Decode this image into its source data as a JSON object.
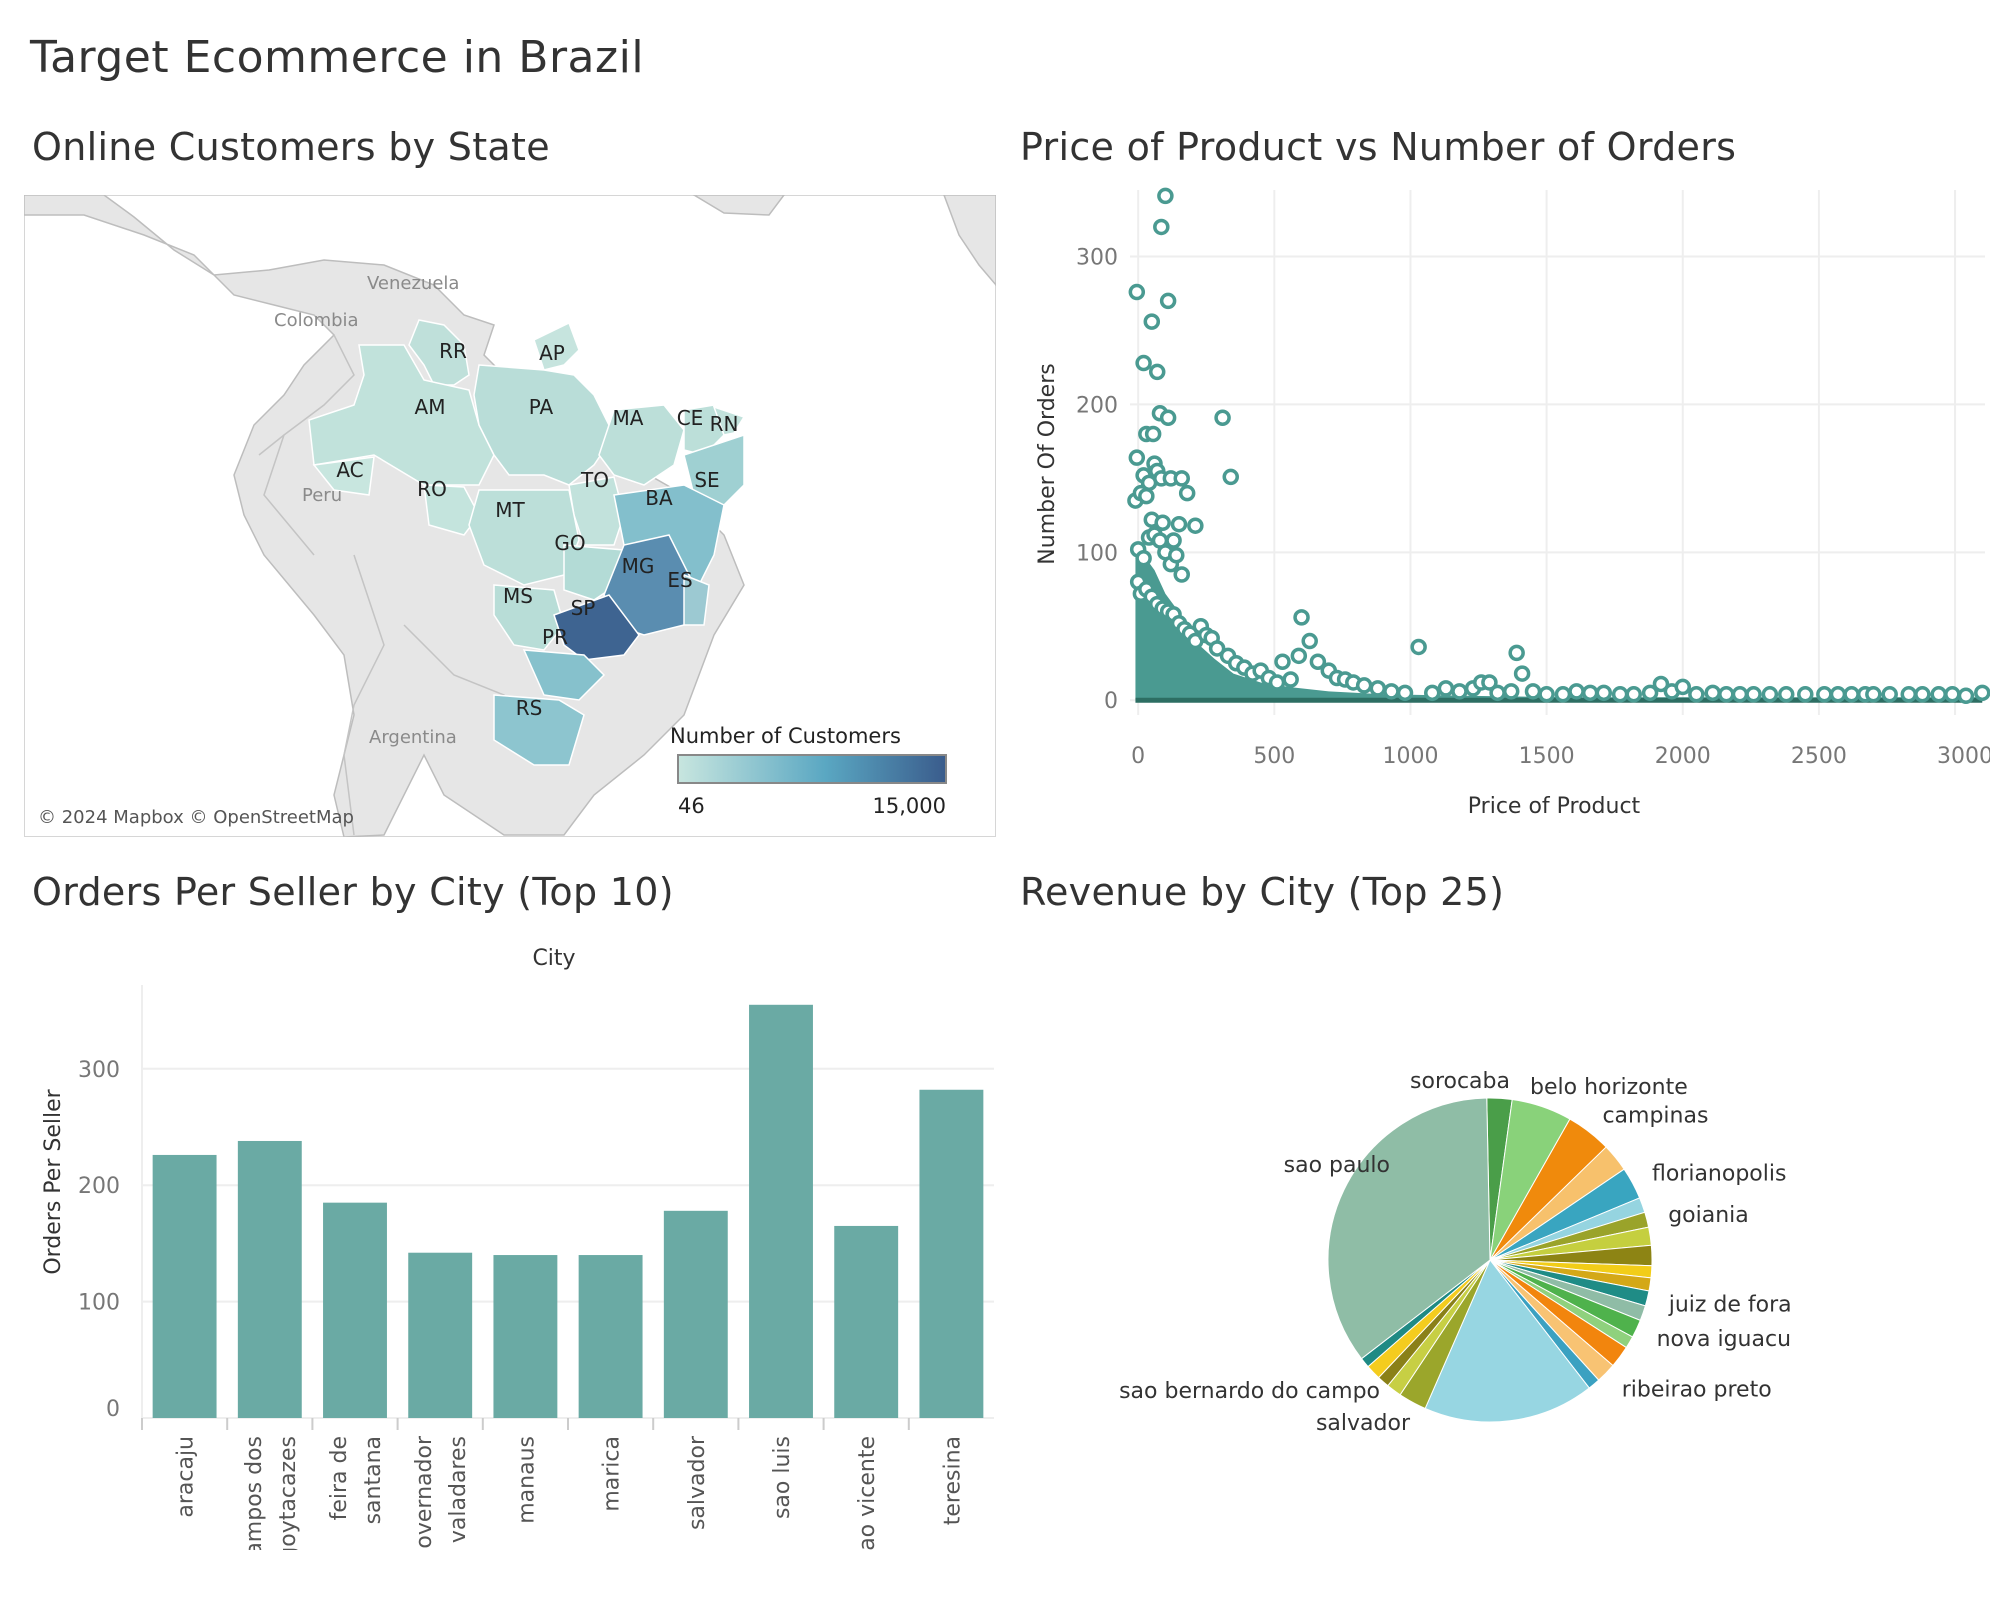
{
  "dashboard": {
    "title": "Target Ecommerce in Brazil"
  },
  "sheets": {
    "map_title": "Online Customers by State",
    "scatter_title": "Price of Product vs Number of Orders",
    "bar_title": "Orders Per Seller by City (Top 10)",
    "pie_title": "Revenue by City (Top 25)"
  },
  "map": {
    "country_labels": [
      "Venezuela",
      "Colombia",
      "Peru",
      "Argentina"
    ],
    "state_labels": [
      "RR",
      "AP",
      "AM",
      "PA",
      "MA",
      "CE",
      "RN",
      "AC",
      "RO",
      "TO",
      "SE",
      "BA",
      "MT",
      "GO",
      "MG",
      "ES",
      "MS",
      "SP",
      "PR",
      "RS"
    ],
    "attribution": "© 2024 Mapbox © OpenStreetMap",
    "legend": {
      "title": "Number of Customers",
      "min": "46",
      "max": "15,000",
      "color_min": "#c8e6df",
      "color_max": "#3a5c8c"
    },
    "colors": {
      "land": "#e6e6e6",
      "water": "#ffffff",
      "border": "#b9b9b9"
    }
  },
  "chart_data": [
    {
      "type": "scatter",
      "title": "Price of Product vs Number of Orders",
      "xlabel": "Price of Product",
      "ylabel": "Number Of Orders",
      "xticks": [
        "0",
        "500",
        "1000",
        "1500",
        "2000",
        "2500",
        "3000"
      ],
      "yticks": [
        "0",
        "100",
        "200",
        "300"
      ],
      "xlim": [
        -30,
        3110
      ],
      "ylim": [
        -10,
        345
      ],
      "grid": true,
      "color": "#4a9a91",
      "points": [
        [
          100,
          341
        ],
        [
          85,
          320
        ],
        [
          -5,
          276
        ],
        [
          110,
          270
        ],
        [
          50,
          256
        ],
        [
          20,
          228
        ],
        [
          70,
          222
        ],
        [
          80,
          194
        ],
        [
          110,
          191
        ],
        [
          310,
          191
        ],
        [
          30,
          180
        ],
        [
          55,
          180
        ],
        [
          -5,
          164
        ],
        [
          60,
          160
        ],
        [
          20,
          152
        ],
        [
          40,
          147
        ],
        [
          70,
          155
        ],
        [
          85,
          150
        ],
        [
          120,
          150
        ],
        [
          160,
          150
        ],
        [
          180,
          140
        ],
        [
          340,
          151
        ],
        [
          -10,
          135
        ],
        [
          10,
          140
        ],
        [
          30,
          138
        ],
        [
          50,
          122
        ],
        [
          90,
          120
        ],
        [
          130,
          108
        ],
        [
          150,
          119
        ],
        [
          210,
          118
        ],
        [
          0,
          102
        ],
        [
          20,
          96
        ],
        [
          40,
          110
        ],
        [
          60,
          112
        ],
        [
          80,
          108
        ],
        [
          100,
          100
        ],
        [
          120,
          92
        ],
        [
          140,
          98
        ],
        [
          160,
          85
        ],
        [
          0,
          80
        ],
        [
          10,
          72
        ],
        [
          30,
          75
        ],
        [
          50,
          70
        ],
        [
          70,
          65
        ],
        [
          90,
          62
        ],
        [
          110,
          60
        ],
        [
          130,
          58
        ],
        [
          150,
          52
        ],
        [
          170,
          48
        ],
        [
          190,
          45
        ],
        [
          210,
          40
        ],
        [
          230,
          50
        ],
        [
          250,
          44
        ],
        [
          270,
          42
        ],
        [
          290,
          35
        ],
        [
          330,
          30
        ],
        [
          360,
          25
        ],
        [
          390,
          22
        ],
        [
          420,
          18
        ],
        [
          450,
          20
        ],
        [
          480,
          15
        ],
        [
          510,
          12
        ],
        [
          530,
          26
        ],
        [
          560,
          14
        ],
        [
          590,
          30
        ],
        [
          600,
          56
        ],
        [
          630,
          40
        ],
        [
          660,
          26
        ],
        [
          700,
          20
        ],
        [
          730,
          15
        ],
        [
          760,
          14
        ],
        [
          790,
          12
        ],
        [
          830,
          10
        ],
        [
          880,
          8
        ],
        [
          930,
          6
        ],
        [
          980,
          5
        ],
        [
          1030,
          36
        ],
        [
          1080,
          5
        ],
        [
          1130,
          8
        ],
        [
          1180,
          6
        ],
        [
          1230,
          8
        ],
        [
          1260,
          12
        ],
        [
          1290,
          12
        ],
        [
          1320,
          5
        ],
        [
          1370,
          6
        ],
        [
          1390,
          32
        ],
        [
          1410,
          18
        ],
        [
          1450,
          6
        ],
        [
          1500,
          4
        ],
        [
          1560,
          4
        ],
        [
          1610,
          6
        ],
        [
          1660,
          5
        ],
        [
          1710,
          5
        ],
        [
          1770,
          4
        ],
        [
          1820,
          4
        ],
        [
          1880,
          5
        ],
        [
          1920,
          11
        ],
        [
          1960,
          6
        ],
        [
          2000,
          9
        ],
        [
          2050,
          4
        ],
        [
          2110,
          5
        ],
        [
          2160,
          4
        ],
        [
          2210,
          4
        ],
        [
          2260,
          4
        ],
        [
          2320,
          4
        ],
        [
          2380,
          4
        ],
        [
          2450,
          4
        ],
        [
          2520,
          4
        ],
        [
          2570,
          4
        ],
        [
          2620,
          4
        ],
        [
          2670,
          4
        ],
        [
          2700,
          4
        ],
        [
          2760,
          4
        ],
        [
          2830,
          4
        ],
        [
          2880,
          4
        ],
        [
          2940,
          4
        ],
        [
          2990,
          4
        ],
        [
          3040,
          3
        ],
        [
          3100,
          5
        ]
      ]
    },
    {
      "type": "bar",
      "title": "Orders Per Seller by City (Top 10)",
      "xlabel": "City",
      "ylabel": "Orders Per Seller",
      "yticks": [
        "0",
        "100",
        "200",
        "300"
      ],
      "ylim": [
        0,
        372
      ],
      "color": "#6aaaa4",
      "categories": [
        [
          "aracaju"
        ],
        [
          "campos dos",
          "goytacazes"
        ],
        [
          "feira de",
          "santana"
        ],
        [
          "governador",
          "valadares"
        ],
        [
          "manaus"
        ],
        [
          "marica"
        ],
        [
          "salvador"
        ],
        [
          "sao luis"
        ],
        [
          "sao vicente"
        ],
        [
          "teresina"
        ]
      ],
      "values": [
        226,
        238,
        185,
        142,
        140,
        140,
        178,
        355,
        165,
        282
      ]
    },
    {
      "type": "pie",
      "title": "Revenue by City (Top 25)",
      "labels": [
        "sorocaba",
        "belo horizonte",
        "campinas",
        "florianopolis",
        "goiania",
        "juiz de fora",
        "nova iguacu",
        "ribeirao preto",
        "salvador",
        "sao bernardo do campo",
        "sao paulo"
      ],
      "slices": [
        {
          "label": "sorocaba",
          "value": 2.5,
          "color": "#4a9e49"
        },
        {
          "label": "belo horizonte",
          "value": 6.0,
          "color": "#89d27a"
        },
        {
          "label": "campinas",
          "value": 4.5,
          "color": "#f08a0c"
        },
        {
          "label": "",
          "value": 2.8,
          "color": "#f7c16c"
        },
        {
          "label": "florianopolis",
          "value": 3.2,
          "color": "#39a5c0"
        },
        {
          "label": "",
          "value": 1.5,
          "color": "#95d4e0"
        },
        {
          "label": "goiania",
          "value": 1.5,
          "color": "#9aa32a"
        },
        {
          "label": "",
          "value": 1.8,
          "color": "#c5cf3f"
        },
        {
          "label": "",
          "value": 2.0,
          "color": "#8d8414"
        },
        {
          "label": "",
          "value": 1.2,
          "color": "#f2cd18"
        },
        {
          "label": "",
          "value": 1.3,
          "color": "#d4a817"
        },
        {
          "label": "juiz de fora",
          "value": 1.5,
          "color": "#1f8c86"
        },
        {
          "label": "",
          "value": 1.5,
          "color": "#8fbca6"
        },
        {
          "label": "nova iguacu",
          "value": 1.8,
          "color": "#4fb24c"
        },
        {
          "label": "",
          "value": 1.2,
          "color": "#8fd17d"
        },
        {
          "label": "",
          "value": 2.2,
          "color": "#f2850d"
        },
        {
          "label": "ribeirao preto",
          "value": 2.0,
          "color": "#f8c373"
        },
        {
          "label": "",
          "value": 1.2,
          "color": "#3ba1c1"
        },
        {
          "label": "",
          "value": 17.0,
          "color": "#97d6e2"
        },
        {
          "label": "salvador",
          "value": 2.8,
          "color": "#9ba62b"
        },
        {
          "label": "",
          "value": 1.5,
          "color": "#c7cf44"
        },
        {
          "label": "",
          "value": 1.2,
          "color": "#8a8018"
        },
        {
          "label": "sao bernardo do campo",
          "value": 1.5,
          "color": "#f4cc1e"
        },
        {
          "label": "",
          "value": 1.0,
          "color": "#1f8a84"
        },
        {
          "label": "sao paulo",
          "value": 35.0,
          "color": "#8fbda6"
        }
      ]
    }
  ]
}
